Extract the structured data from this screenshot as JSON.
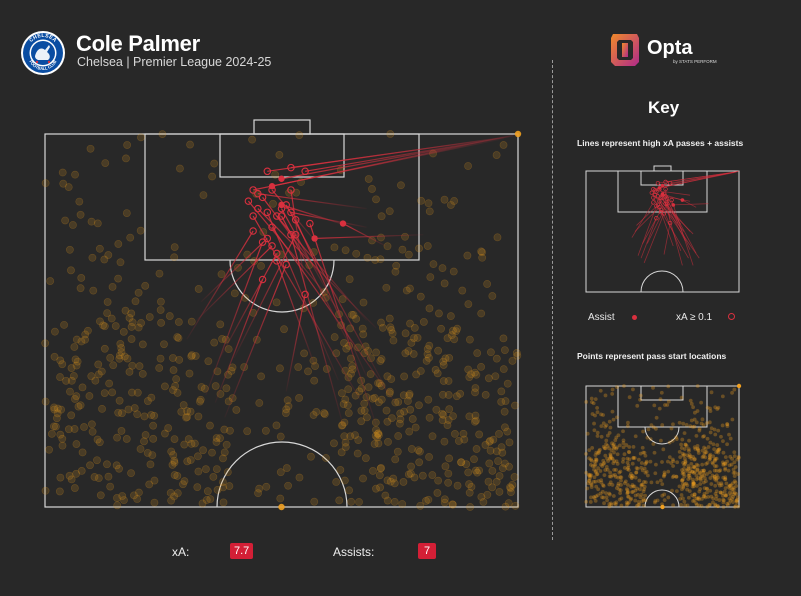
{
  "header": {
    "title": "Cole Palmer",
    "subtitle": "Chelsea | Premier League 2024-25",
    "badge_text_top": "CHELSEA",
    "badge_text_bottom": "FOOTBALL CLUB",
    "brand": "Opta",
    "brand_tagline": "by STATS PERFORM"
  },
  "key": {
    "title": "Key",
    "lines_label": "Lines represent high xA passes + assists",
    "assist_label": "Assist",
    "xa_label": "xA ≥ 0.1",
    "points_label": "Points represent pass start locations"
  },
  "stats": {
    "xa_label": "xA:",
    "xa_value": "7.7",
    "assists_label": "Assists:",
    "assists_value": "7"
  },
  "colors": {
    "background": "#282828",
    "pitch_lines": "#d8d8d8",
    "assist_red": "#d9303e",
    "point_orange": "#f0a020",
    "badge_blue": "#0a4da2",
    "opta_gradient": [
      "#f08a2a",
      "#b02a8a"
    ]
  },
  "chart_data": {
    "type": "scatter",
    "description_units": "Pitch coordinates: x 0-100 across pitch width (left to right), y 0-100 from opponent goal line (0) toward own half (100)",
    "pass_start_points": {
      "count_estimate": 700,
      "density": "Dense on right and left wings in own half, sparse near opponent box",
      "edge_markers": [
        {
          "x": 100,
          "y": 0
        },
        {
          "x": 50,
          "y": 100
        }
      ]
    },
    "passes": [
      {
        "type": "assist",
        "start": [
          100,
          0
        ],
        "end": [
          48,
          14
        ]
      },
      {
        "type": "assist",
        "start": [
          99,
          0.5
        ],
        "end": [
          50,
          12
        ]
      },
      {
        "type": "xa",
        "start": [
          99,
          0.5
        ],
        "end": [
          47,
          10
        ]
      },
      {
        "type": "xa",
        "start": [
          98,
          0.8
        ],
        "end": [
          52,
          9
        ]
      },
      {
        "type": "xa",
        "start": [
          97,
          1
        ],
        "end": [
          55,
          10
        ]
      },
      {
        "type": "xa",
        "start": [
          97,
          1.2
        ],
        "end": [
          44,
          15
        ]
      },
      {
        "type": "assist",
        "start": [
          65,
          25
        ],
        "end": [
          50,
          19
        ]
      },
      {
        "type": "assist",
        "start": [
          72,
          30
        ],
        "end": [
          63,
          24
        ]
      },
      {
        "type": "assist",
        "start": [
          80,
          27
        ],
        "end": [
          57,
          28
        ]
      },
      {
        "type": "xa",
        "start": [
          68,
          20
        ],
        "end": [
          45,
          16
        ]
      },
      {
        "type": "xa",
        "start": [
          68,
          25
        ],
        "end": [
          52,
          21
        ]
      },
      {
        "type": "xa",
        "start": [
          58,
          30
        ],
        "end": [
          48,
          15
        ]
      },
      {
        "type": "xa",
        "start": [
          55,
          41
        ],
        "end": [
          52,
          15
        ]
      },
      {
        "type": "xa",
        "start": [
          60,
          43
        ],
        "end": [
          50,
          20
        ]
      },
      {
        "type": "xa",
        "start": [
          62,
          44
        ],
        "end": [
          46,
          17
        ]
      },
      {
        "type": "xa",
        "start": [
          64,
          50
        ],
        "end": [
          43,
          18
        ]
      },
      {
        "type": "xa",
        "start": [
          68,
          50
        ],
        "end": [
          49,
          22
        ]
      },
      {
        "type": "xa",
        "start": [
          70,
          52
        ],
        "end": [
          45,
          20
        ]
      },
      {
        "type": "xa",
        "start": [
          65,
          58
        ],
        "end": [
          50,
          22
        ]
      },
      {
        "type": "xa",
        "start": [
          62,
          66
        ],
        "end": [
          47,
          21
        ]
      },
      {
        "type": "xa",
        "start": [
          68,
          65
        ],
        "end": [
          53,
          23
        ]
      },
      {
        "type": "xa",
        "start": [
          72,
          68
        ],
        "end": [
          51,
          19
        ]
      },
      {
        "type": "xa",
        "start": [
          67,
          72
        ],
        "end": [
          44,
          22
        ]
      },
      {
        "type": "xa",
        "start": [
          74,
          72
        ],
        "end": [
          48,
          25
        ]
      },
      {
        "type": "xa",
        "start": [
          63,
          78
        ],
        "end": [
          52,
          27
        ]
      },
      {
        "type": "xa",
        "start": [
          70,
          78
        ],
        "end": [
          56,
          24
        ]
      },
      {
        "type": "xa",
        "start": [
          33,
          45
        ],
        "end": [
          47,
          28
        ]
      },
      {
        "type": "xa",
        "start": [
          32,
          50
        ],
        "end": [
          48,
          30
        ]
      },
      {
        "type": "xa",
        "start": [
          30,
          55
        ],
        "end": [
          44,
          26
        ]
      },
      {
        "type": "xa",
        "start": [
          37,
          60
        ],
        "end": [
          49,
          32
        ]
      },
      {
        "type": "xa",
        "start": [
          34,
          70
        ],
        "end": [
          46,
          29
        ]
      },
      {
        "type": "xa",
        "start": [
          38,
          76
        ],
        "end": [
          51,
          35
        ]
      },
      {
        "type": "xa",
        "start": [
          36,
          72
        ],
        "end": [
          46,
          39
        ]
      },
      {
        "type": "xa",
        "start": [
          40,
          60
        ],
        "end": [
          53,
          27
        ]
      },
      {
        "type": "xa",
        "start": [
          57,
          62
        ],
        "end": [
          49,
          34
        ]
      },
      {
        "type": "xa",
        "start": [
          51,
          69
        ],
        "end": [
          55,
          43
        ]
      }
    ]
  }
}
